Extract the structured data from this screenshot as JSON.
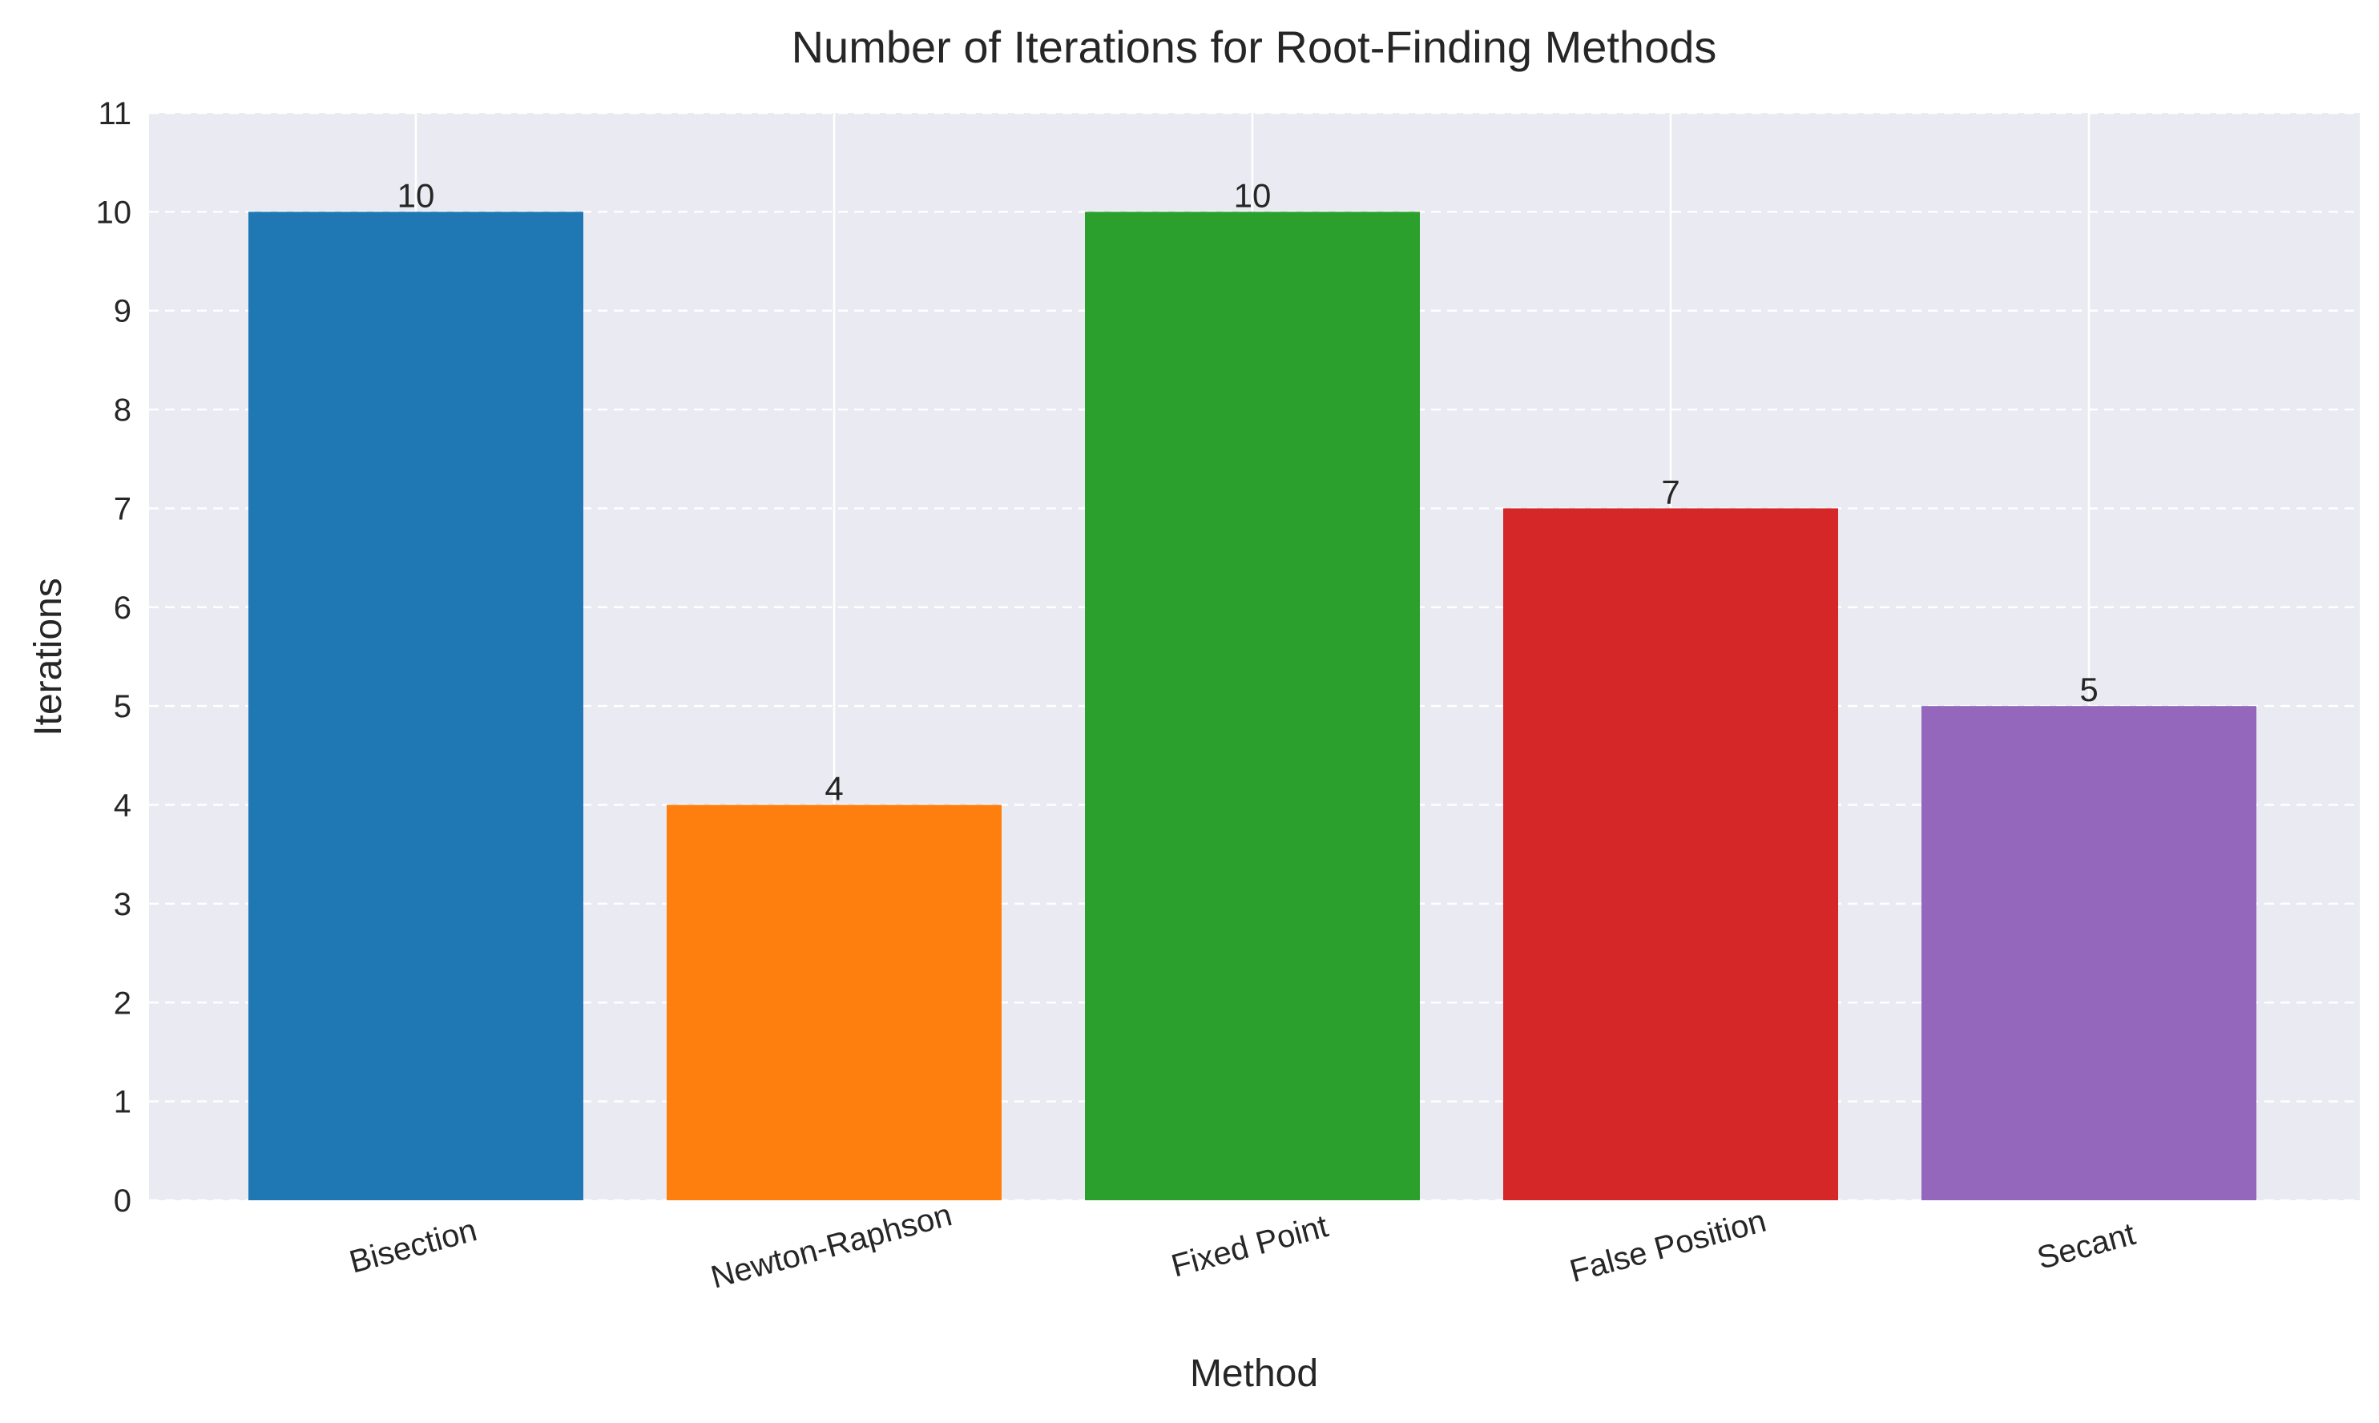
{
  "chart_data": {
    "type": "bar",
    "title": "Number of Iterations for Root-Finding Methods",
    "xlabel": "Method",
    "ylabel": "Iterations",
    "categories": [
      "Bisection",
      "Newton-Raphson",
      "Fixed Point",
      "False Position",
      "Secant"
    ],
    "values": [
      10,
      4,
      10,
      7,
      5
    ],
    "bar_colors": [
      "#1f77b4",
      "#ff7f0e",
      "#2ca02c",
      "#d62728",
      "#9467bd"
    ],
    "ylim": [
      0,
      11
    ],
    "yticks": [
      0,
      1,
      2,
      3,
      4,
      5,
      6,
      7,
      8,
      9,
      10,
      11
    ],
    "data_labels": [
      "10",
      "4",
      "10",
      "7",
      "5"
    ],
    "x_tick_rotation_deg": 15,
    "grid": true,
    "grid_style": "dashed horizontal, solid vertical",
    "background": "#eaeaf2",
    "legend": "none"
  }
}
